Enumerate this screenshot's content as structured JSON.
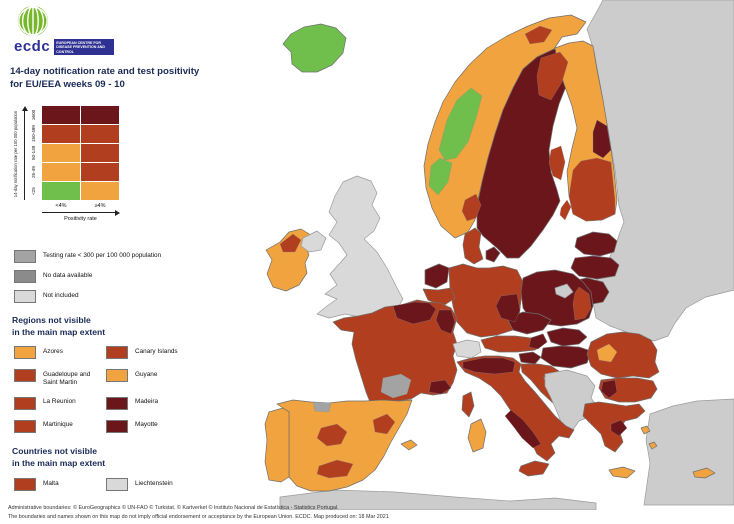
{
  "logo": {
    "acronym": "ecdc",
    "org_name": "EUROPEAN CENTRE FOR DISEASE PREVENTION AND CONTROL"
  },
  "title": {
    "line1": "14-day notification rate and test positivity",
    "line2": "for EU/EEA weeks 09 - 10"
  },
  "matrix_legend": {
    "y_axis_label": "14-day notification rate per 100 000 population",
    "x_axis_label": "Positivity rate",
    "row_labels": [
      "≥500",
      "150-499",
      "50-149",
      "25-49",
      "<25"
    ],
    "col_labels": [
      "<4%",
      "≥4%"
    ],
    "cells": [
      [
        "darkred",
        "darkred"
      ],
      [
        "red",
        "red"
      ],
      [
        "orange",
        "red"
      ],
      [
        "orange",
        "red"
      ],
      [
        "green",
        "orange"
      ]
    ]
  },
  "status_legend": [
    {
      "label": "Testing rate < 300 per 100 000 population",
      "category": "testing_low"
    },
    {
      "label": "No data available",
      "category": "no_data"
    },
    {
      "label": "Not included",
      "category": "not_included"
    }
  ],
  "regions_section": {
    "heading_line1": "Regions not visible",
    "heading_line2": "in the main map extent",
    "items": [
      {
        "label": "Azores",
        "category": "orange"
      },
      {
        "label": "Canary Islands",
        "category": "red"
      },
      {
        "label": "Guadeloupe and Saint Martin",
        "category": "red"
      },
      {
        "label": "Guyane",
        "category": "orange"
      },
      {
        "label": "La Reunion",
        "category": "red"
      },
      {
        "label": "Madeira",
        "category": "darkred"
      },
      {
        "label": "Martinique",
        "category": "red"
      },
      {
        "label": "Mayotte",
        "category": "darkred"
      }
    ]
  },
  "countries_section": {
    "heading_line1": "Countries not visible",
    "heading_line2": "in the main map extent",
    "items": [
      {
        "label": "Malta",
        "category": "red"
      },
      {
        "label": "Liechtenstein",
        "category": "not_included"
      }
    ]
  },
  "footer": {
    "line1": "Administrative boundaries: © EuroGeographics © UN-FAO © Turkstat. © Kartverket © Instituto Nacional de Estatística - Statistics Portugal.",
    "line2": "The boundaries and names shown on this map do not imply official endorsement or acceptance by the European Union. ECDC. Map produced on: 18 Mar 2021"
  },
  "colors": {
    "green": "#70bf4c",
    "orange": "#f0a33e",
    "red": "#b23e20",
    "darkred": "#6b161b",
    "testing_low": "#a3a3a3",
    "no_data": "#8b8b8b",
    "not_included": "#d9d9d9",
    "non_eu": "#cccccc",
    "title_text": "#1a2a57",
    "logo_green": "#76b82a",
    "logo_blue": "#2e3192"
  },
  "map": {
    "regions": {
      "east-europe": "non_eu",
      "turkey": "non_eu",
      "north-africa": "non_eu",
      "uk": "not_included",
      "northern-ireland": "not_included",
      "switzerland": "not_included",
      "balkans": "non_eu",
      "kaliningrad": "non_eu",
      "iceland": "green",
      "norway": "orange",
      "sweden": "darkred",
      "finland": "orange",
      "estonia": "darkred",
      "latvia": "darkred",
      "lithuania": "darkred",
      "denmark": "red",
      "denmark-islands": "darkred",
      "ireland": "orange",
      "netherlands": "darkred",
      "belgium": "red",
      "germany": "red",
      "poland": "darkred",
      "czechia": "darkred",
      "austria": "red",
      "slovakia": "darkred",
      "hungary": "darkred",
      "slovenia": "darkred",
      "croatia": "red",
      "romania": "red",
      "bulgaria": "red",
      "greece": "red",
      "crete": "orange",
      "aegean-1": "orange",
      "aegean-2": "orange",
      "cyprus": "orange",
      "france": "red",
      "corsica": "red",
      "italy": "red",
      "sicily": "red",
      "sardinia": "orange",
      "spain": "orange",
      "portugal": "orange",
      "balearics": "orange",
      "norway-green-mid": "green",
      "norway-green-south": "green",
      "norway-oslo": "red",
      "norway-north": "red",
      "sweden-north": "red",
      "sweden-mid": "red",
      "gotland": "red",
      "finland-south": "red",
      "finland-east": "darkred",
      "germany-east": "darkred",
      "poland-east": "red",
      "austria-east": "darkred",
      "romania-west": "orange",
      "bulgaria-west": "darkred",
      "greece-attica": "darkred",
      "france-north": "darkred",
      "france-east": "darkred",
      "france-southeast": "darkred",
      "france-south-gray": "testing_low",
      "italy-north": "darkred",
      "italy-south": "darkred",
      "spain-center": "red",
      "spain-east": "red",
      "spain-south": "red",
      "spain-north-gray": "testing_low",
      "ireland-northeast": "red"
    }
  }
}
